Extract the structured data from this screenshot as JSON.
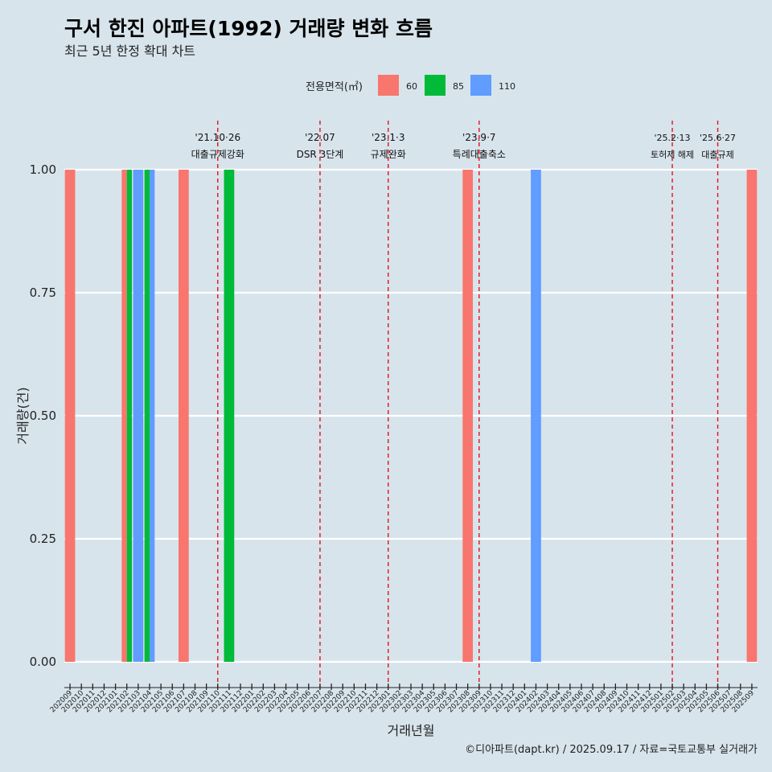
{
  "title": "구서 한진 아파트(1992) 거래량 변화 흐름",
  "subtitle": "최근 5년 한정 확대 차트",
  "caption": "©디아파트(dapt.kr) / 2025.09.17 / 자료=국토교통부 실거래가",
  "legend": {
    "title": "전용면적(㎡)",
    "items": [
      {
        "label": "60",
        "color": "#f8766d"
      },
      {
        "label": "85",
        "color": "#00ba38"
      },
      {
        "label": "110",
        "color": "#619cff"
      }
    ]
  },
  "chart_data": {
    "type": "bar",
    "xlabel": "거래년월",
    "ylabel": "거래량(건)",
    "ylim": [
      0,
      1
    ],
    "yticks": [
      "0.00",
      "0.25",
      "0.50",
      "0.75",
      "1.00"
    ],
    "categories": [
      "202009",
      "202010",
      "202011",
      "202012",
      "202101",
      "202102",
      "202103",
      "202104",
      "202105",
      "202106",
      "202107",
      "202108",
      "202109",
      "202110",
      "202111",
      "202112",
      "202201",
      "202202",
      "202203",
      "202204",
      "202205",
      "202206",
      "202207",
      "202208",
      "202209",
      "202210",
      "202211",
      "202212",
      "202301",
      "202302",
      "202303",
      "202304",
      "202305",
      "202306",
      "202307",
      "202308",
      "202309",
      "202310",
      "202311",
      "202312",
      "202401",
      "202402",
      "202403",
      "202404",
      "202405",
      "202406",
      "202407",
      "202408",
      "202409",
      "202410",
      "202411",
      "202412",
      "202501",
      "202502",
      "202503",
      "202504",
      "202505",
      "202506",
      "202507",
      "202508",
      "202509"
    ],
    "series": [
      {
        "name": "60",
        "color": "#f8766d",
        "points": [
          {
            "x": "202009",
            "y": 1
          },
          {
            "x": "202102",
            "y": 1
          },
          {
            "x": "202107",
            "y": 1
          },
          {
            "x": "202308",
            "y": 1
          },
          {
            "x": "202509",
            "y": 1
          }
        ]
      },
      {
        "name": "85",
        "color": "#00ba38",
        "points": [
          {
            "x": "202102",
            "y": 1
          },
          {
            "x": "202104",
            "y": 1
          },
          {
            "x": "202111",
            "y": 1
          }
        ]
      },
      {
        "name": "110",
        "color": "#619cff",
        "points": [
          {
            "x": "202103",
            "y": 1
          },
          {
            "x": "202104",
            "y": 1
          },
          {
            "x": "202402",
            "y": 1
          }
        ]
      }
    ],
    "events": [
      {
        "date": "'21.10·26",
        "label": "대출규제강화",
        "x": "202110",
        "offset": 0.0
      },
      {
        "date": "'22.07",
        "label": "DSR 3단계",
        "x": "202207",
        "offset": 0.0
      },
      {
        "date": "'23.1·3",
        "label": "규제완화",
        "x": "202301",
        "offset": 0.0
      },
      {
        "date": "'23.9·7",
        "label": "특례대출축소",
        "x": "202309",
        "offset": 0.0
      },
      {
        "date": "'25.2·13",
        "label": "토허제 해제",
        "x": "202502",
        "offset": 0.0
      },
      {
        "date": "'25.6·27",
        "label": "대출규제",
        "x": "202506",
        "offset": 0.0
      }
    ]
  }
}
